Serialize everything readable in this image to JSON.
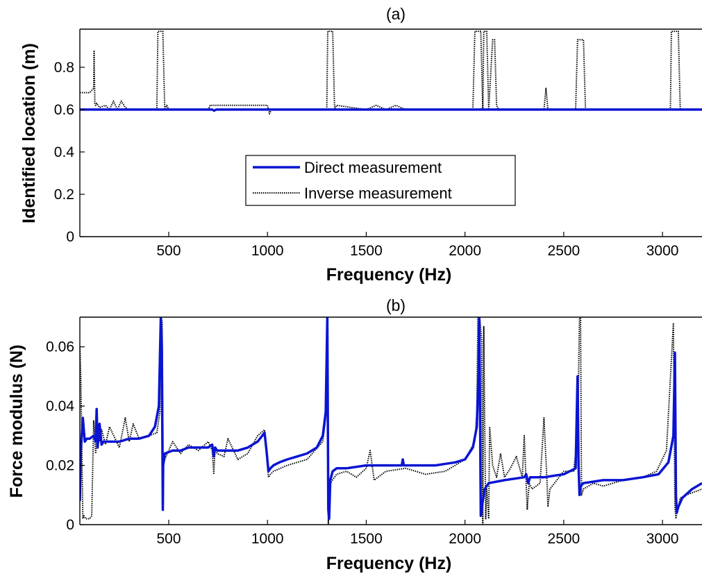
{
  "colors": {
    "direct": "#0a14d2",
    "inverse": "#000000"
  },
  "chart_data": [
    {
      "type": "line",
      "title": "(a)",
      "xlabel": "Frequency (Hz)",
      "ylabel": "Identified location (m)",
      "xlim": [
        50,
        3200
      ],
      "ylim": [
        0,
        0.98
      ],
      "xticks": [
        500,
        1000,
        1500,
        2000,
        2500,
        3000
      ],
      "yticks": [
        0,
        0.2,
        0.4,
        0.6,
        0.8
      ],
      "grid": false,
      "legend": {
        "position": "center-right"
      },
      "series": [
        {
          "name": "Direct measurement",
          "style": "solid",
          "x": [
            50,
            720,
            730,
            740,
            3200
          ],
          "y": [
            0.6,
            0.6,
            0.595,
            0.6,
            0.6
          ]
        },
        {
          "name": "Inverse measurement",
          "style": "dotted",
          "x": [
            50,
            60,
            100,
            120,
            122,
            126,
            130,
            135,
            150,
            180,
            200,
            220,
            240,
            260,
            280,
            300,
            440,
            445,
            450,
            470,
            480,
            490,
            500,
            700,
            710,
            1000,
            1010,
            1020,
            1300,
            1305,
            1310,
            1330,
            1340,
            1350,
            1500,
            1550,
            1600,
            1650,
            1700,
            2000,
            2040,
            2050,
            2080,
            2090,
            2095,
            2110,
            2120,
            2140,
            2150,
            2160,
            2170,
            2400,
            2410,
            2420,
            2430,
            2560,
            2570,
            2600,
            2610,
            3040,
            3045,
            3060,
            3080,
            3090,
            3100,
            3200
          ],
          "y": [
            0.68,
            0.68,
            0.68,
            0.7,
            0.88,
            0.63,
            0.62,
            0.63,
            0.61,
            0.62,
            0.6,
            0.64,
            0.6,
            0.64,
            0.61,
            0.6,
            0.6,
            0.97,
            0.97,
            0.97,
            0.6,
            0.62,
            0.6,
            0.6,
            0.62,
            0.62,
            0.58,
            0.6,
            0.6,
            0.97,
            0.97,
            0.97,
            0.6,
            0.62,
            0.6,
            0.62,
            0.6,
            0.62,
            0.6,
            0.6,
            0.6,
            0.97,
            0.97,
            0.6,
            0.97,
            0.97,
            0.6,
            0.93,
            0.93,
            0.62,
            0.6,
            0.6,
            0.7,
            0.6,
            0.6,
            0.6,
            0.93,
            0.93,
            0.6,
            0.6,
            0.97,
            0.97,
            0.97,
            0.6,
            0.6,
            0.6
          ]
        }
      ]
    },
    {
      "type": "line",
      "title": "(b)",
      "xlabel": "Frequency (Hz)",
      "ylabel": "Force modulus (N)",
      "xlim": [
        50,
        3200
      ],
      "ylim": [
        0,
        0.07
      ],
      "xticks": [
        500,
        1000,
        1500,
        2000,
        2500,
        3000
      ],
      "yticks": [
        0,
        0.02,
        0.04,
        0.06
      ],
      "grid": false,
      "legend": null,
      "series": [
        {
          "name": "Direct measurement",
          "style": "solid",
          "x": [
            50,
            55,
            65,
            75,
            85,
            100,
            120,
            130,
            135,
            140,
            150,
            160,
            170,
            200,
            250,
            300,
            350,
            400,
            430,
            450,
            460,
            465,
            470,
            472,
            480,
            520,
            560,
            600,
            650,
            700,
            720,
            728,
            735,
            745,
            780,
            850,
            900,
            950,
            985,
            995,
            1005,
            1015,
            1030,
            1060,
            1100,
            1150,
            1200,
            1250,
            1280,
            1295,
            1303,
            1308,
            1312,
            1318,
            1330,
            1350,
            1400,
            1500,
            1600,
            1680,
            1685,
            1690,
            1750,
            1850,
            1950,
            2000,
            2040,
            2060,
            2068,
            2072,
            2075,
            2080,
            2090,
            2100,
            2120,
            2200,
            2300,
            2310,
            2320,
            2330,
            2400,
            2500,
            2560,
            2570,
            2575,
            2580,
            2585,
            2600,
            2700,
            2800,
            2900,
            2980,
            3030,
            3055,
            3063,
            3068,
            3072,
            3080,
            3100,
            3150,
            3200
          ],
          "y": [
            0.008,
            0.025,
            0.036,
            0.028,
            0.029,
            0.029,
            0.03,
            0.028,
            0.039,
            0.026,
            0.034,
            0.027,
            0.028,
            0.028,
            0.028,
            0.029,
            0.029,
            0.03,
            0.033,
            0.04,
            0.07,
            0.06,
            0.005,
            0.02,
            0.024,
            0.025,
            0.025,
            0.026,
            0.026,
            0.026,
            0.027,
            0.023,
            0.026,
            0.025,
            0.025,
            0.025,
            0.026,
            0.028,
            0.031,
            0.025,
            0.018,
            0.019,
            0.02,
            0.021,
            0.022,
            0.023,
            0.024,
            0.026,
            0.03,
            0.038,
            0.07,
            0.005,
            0.002,
            0.015,
            0.018,
            0.019,
            0.019,
            0.02,
            0.02,
            0.02,
            0.022,
            0.02,
            0.02,
            0.02,
            0.021,
            0.022,
            0.026,
            0.033,
            0.05,
            0.07,
            0.05,
            0.003,
            0.008,
            0.012,
            0.014,
            0.015,
            0.016,
            0.017,
            0.014,
            0.016,
            0.016,
            0.017,
            0.019,
            0.05,
            0.02,
            0.01,
            0.013,
            0.014,
            0.015,
            0.015,
            0.016,
            0.017,
            0.021,
            0.03,
            0.058,
            0.01,
            0.004,
            0.006,
            0.009,
            0.012,
            0.014
          ]
        },
        {
          "name": "Inverse measurement",
          "style": "dotted",
          "x": [
            50,
            55,
            65,
            70,
            80,
            100,
            110,
            120,
            130,
            140,
            150,
            160,
            180,
            200,
            250,
            280,
            300,
            320,
            350,
            400,
            440,
            455,
            462,
            467,
            472,
            480,
            520,
            560,
            600,
            650,
            700,
            720,
            728,
            735,
            745,
            780,
            800,
            850,
            900,
            950,
            985,
            995,
            1005,
            1015,
            1030,
            1100,
            1200,
            1280,
            1295,
            1303,
            1308,
            1312,
            1318,
            1350,
            1400,
            1450,
            1500,
            1520,
            1540,
            1600,
            1700,
            1800,
            1900,
            2000,
            2050,
            2060,
            2065,
            2075,
            2085,
            2090,
            2095,
            2105,
            2110,
            2120,
            2125,
            2140,
            2160,
            2180,
            2200,
            2230,
            2260,
            2290,
            2300,
            2315,
            2325,
            2340,
            2380,
            2400,
            2415,
            2420,
            2430,
            2500,
            2550,
            2570,
            2580,
            2585,
            2590,
            2600,
            2650,
            2700,
            2800,
            2900,
            2970,
            3020,
            3055,
            3063,
            3068,
            3075,
            3090,
            3120,
            3200
          ],
          "y": [
            0.06,
            0.05,
            0.002,
            0.003,
            0.002,
            0.002,
            0.003,
            0.035,
            0.024,
            0.034,
            0.028,
            0.032,
            0.027,
            0.033,
            0.026,
            0.036,
            0.028,
            0.034,
            0.029,
            0.03,
            0.031,
            0.038,
            0.07,
            0.068,
            0.02,
            0.022,
            0.028,
            0.024,
            0.027,
            0.025,
            0.028,
            0.025,
            0.017,
            0.026,
            0.024,
            0.023,
            0.029,
            0.022,
            0.024,
            0.03,
            0.032,
            0.025,
            0.016,
            0.017,
            0.018,
            0.02,
            0.022,
            0.028,
            0.036,
            0.07,
            0.0,
            0.007,
            0.014,
            0.017,
            0.018,
            0.016,
            0.019,
            0.025,
            0.015,
            0.018,
            0.019,
            0.017,
            0.018,
            0.022,
            0.028,
            0.038,
            0.07,
            0.07,
            0.062,
            0.0,
            0.067,
            0.002,
            0.012,
            0.002,
            0.033,
            0.02,
            0.016,
            0.024,
            0.016,
            0.019,
            0.023,
            0.016,
            0.03,
            0.005,
            0.014,
            0.012,
            0.014,
            0.036,
            0.015,
            0.006,
            0.012,
            0.018,
            0.018,
            0.03,
            0.07,
            0.07,
            0.01,
            0.012,
            0.014,
            0.013,
            0.015,
            0.016,
            0.018,
            0.025,
            0.068,
            0.006,
            0.002,
            0.005,
            0.009,
            0.01,
            0.012
          ]
        }
      ]
    }
  ]
}
